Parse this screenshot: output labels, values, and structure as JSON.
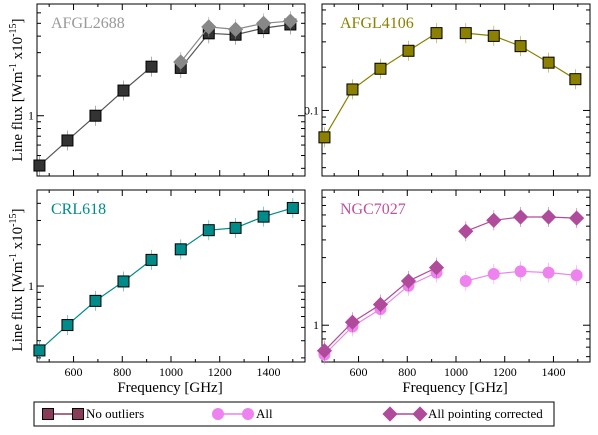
{
  "xlabel": "Frequency [GHz]",
  "ylabel_main": "Line flux [Wm",
  "ylabel_sup1": "-1",
  "ylabel_mid": " x10",
  "ylabel_sup2": "-15",
  "ylabel_end": "]",
  "legend": [
    {
      "label": "No outliers",
      "marker": "square",
      "color": "#8b3a5a"
    },
    {
      "label": "All",
      "marker": "circle",
      "color": "#ee82ee"
    },
    {
      "label": "All pointing corrected",
      "marker": "diamond",
      "color": "#b04a9a"
    }
  ],
  "chart_data": [
    {
      "type": "line",
      "title": "AFGL2688",
      "title_color": "#999999",
      "line_color": "#555555",
      "fill_color": "#333333",
      "yscale": "log",
      "xlim": [
        450,
        1550
      ],
      "ylim": [
        0.35,
        7.0
      ],
      "yticks": [
        1
      ],
      "xticks": [
        600,
        800,
        1000,
        1200,
        1400
      ],
      "show_xticklabels": false,
      "series": [
        {
          "x": [
            460,
            575,
            690,
            805,
            920
          ],
          "values": [
            0.42,
            0.65,
            1.0,
            1.55,
            2.35
          ],
          "marker": "square"
        },
        {
          "x": [
            1040,
            1155,
            1265,
            1380,
            1490
          ],
          "values": [
            2.3,
            4.2,
            4.1,
            4.6,
            4.9
          ],
          "marker": "square"
        },
        {
          "x": [
            1040,
            1155,
            1265,
            1380,
            1490
          ],
          "values": [
            2.55,
            4.7,
            4.5,
            5.0,
            5.2
          ],
          "marker": "diamond",
          "color": "#888888"
        }
      ]
    },
    {
      "type": "line",
      "title": "AFGL4106",
      "title_color": "#8b8000",
      "line_color": "#8b8000",
      "fill_color": "#8b8000",
      "yscale": "log",
      "xlim": [
        450,
        1550
      ],
      "ylim": [
        0.035,
        0.55
      ],
      "yticks": [
        0.1
      ],
      "xticks": [
        600,
        800,
        1000,
        1200,
        1400
      ],
      "show_xticklabels": false,
      "series": [
        {
          "x": [
            460,
            575,
            690,
            805,
            920
          ],
          "values": [
            0.065,
            0.14,
            0.195,
            0.26,
            0.345
          ],
          "marker": "square"
        },
        {
          "x": [
            1040,
            1155,
            1265,
            1380,
            1490
          ],
          "values": [
            0.345,
            0.33,
            0.28,
            0.215,
            0.165
          ],
          "marker": "square"
        }
      ]
    },
    {
      "type": "line",
      "title": "CRL618",
      "title_color": "#008b8b",
      "line_color": "#008b8b",
      "fill_color": "#008b8b",
      "yscale": "log",
      "xlim": [
        450,
        1550
      ],
      "ylim": [
        0.28,
        5.0
      ],
      "yticks": [
        1
      ],
      "xticks": [
        600,
        800,
        1000,
        1200,
        1400
      ],
      "show_xticklabels": true,
      "series": [
        {
          "x": [
            460,
            575,
            690,
            805,
            920
          ],
          "values": [
            0.34,
            0.52,
            0.78,
            1.08,
            1.55
          ],
          "marker": "square"
        },
        {
          "x": [
            1040,
            1155,
            1265,
            1380,
            1500
          ],
          "values": [
            1.85,
            2.55,
            2.65,
            3.2,
            3.7
          ],
          "marker": "square"
        }
      ]
    },
    {
      "type": "line",
      "title": "NGC7027",
      "title_color": "#c050a0",
      "line_color": "#c050a0",
      "fill_color": "#c050a0",
      "yscale": "log",
      "xlim": [
        450,
        1550
      ],
      "ylim": [
        0.55,
        9.0
      ],
      "yticks": [
        1
      ],
      "xticks": [
        600,
        800,
        1000,
        1200,
        1400
      ],
      "show_xticklabels": true,
      "series": [
        {
          "x": [
            460,
            575,
            690,
            805,
            920
          ],
          "values": [
            0.62,
            0.98,
            1.3,
            1.9,
            2.35
          ],
          "marker": "circle",
          "color": "#ee82ee"
        },
        {
          "x": [
            460,
            575,
            690,
            805,
            920
          ],
          "values": [
            0.66,
            1.05,
            1.4,
            2.05,
            2.55
          ],
          "marker": "diamond",
          "color": "#b04a9a"
        },
        {
          "x": [
            1040,
            1155,
            1265,
            1380,
            1495
          ],
          "values": [
            2.05,
            2.3,
            2.4,
            2.35,
            2.25
          ],
          "marker": "circle",
          "color": "#ee82ee"
        },
        {
          "x": [
            1040,
            1155,
            1265,
            1380,
            1495
          ],
          "values": [
            4.6,
            5.5,
            5.8,
            5.8,
            5.7
          ],
          "marker": "diamond",
          "color": "#b04a9a"
        }
      ]
    }
  ]
}
